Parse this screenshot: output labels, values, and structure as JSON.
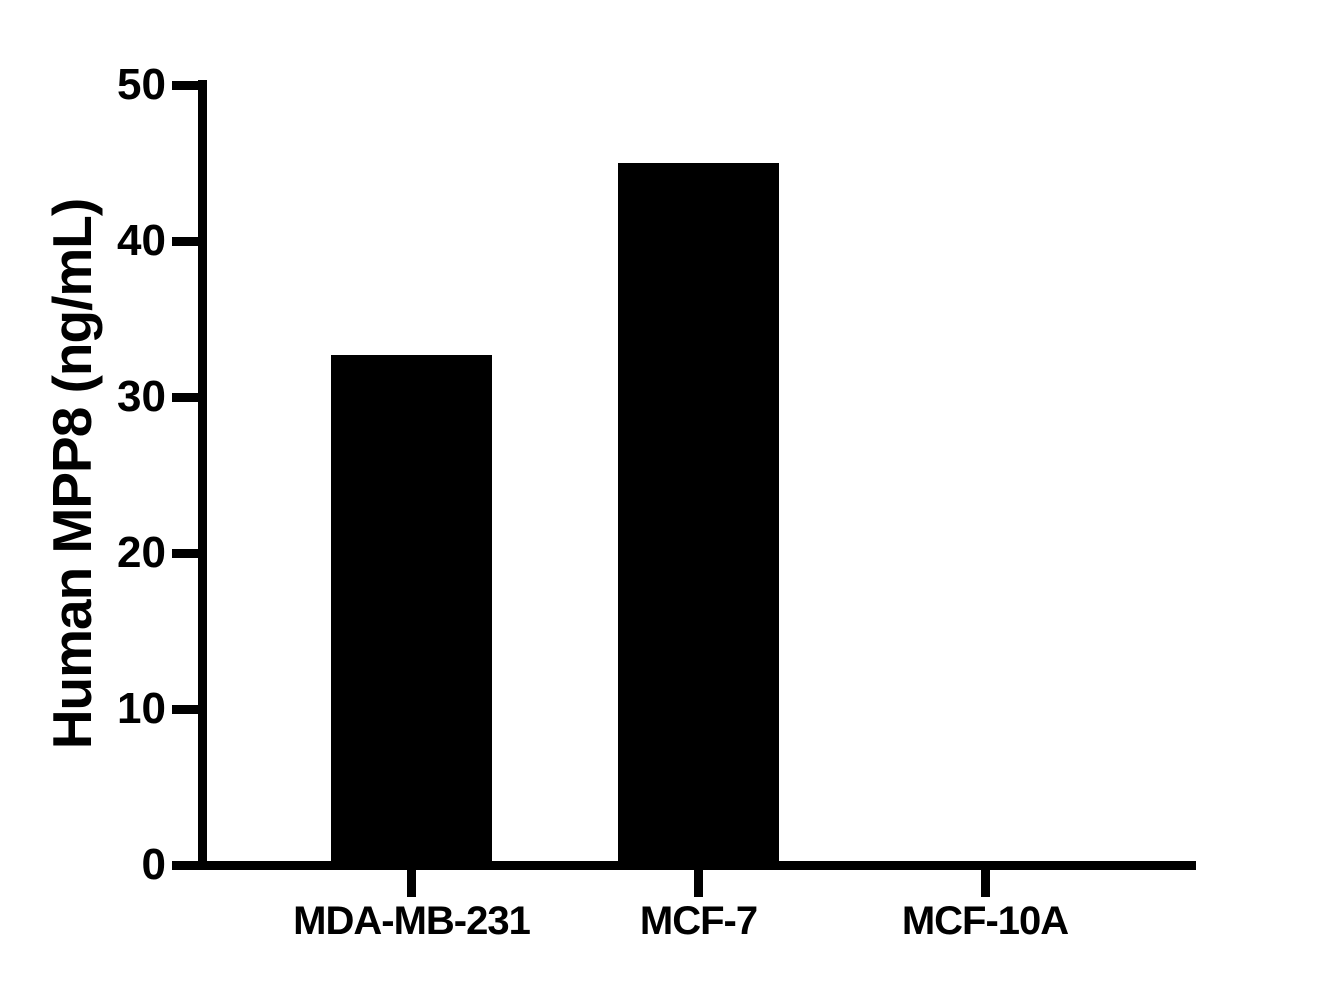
{
  "figure": {
    "background_color": "#ffffff",
    "foreground_color": "#000000"
  },
  "chart_data": {
    "type": "bar",
    "title": "",
    "xlabel": "",
    "ylabel": "Human MPP8 (ng/mL)",
    "categories": [
      "MDA-MB-231",
      "MCF-7",
      "MCF-10A"
    ],
    "values": [
      32.7,
      45.0,
      0.0
    ],
    "ylim": [
      0,
      50
    ],
    "yticks": [
      0,
      10,
      20,
      30,
      40,
      50
    ],
    "bar_color": "#000000",
    "axis_color": "#000000",
    "grid": false,
    "legend": "none"
  }
}
